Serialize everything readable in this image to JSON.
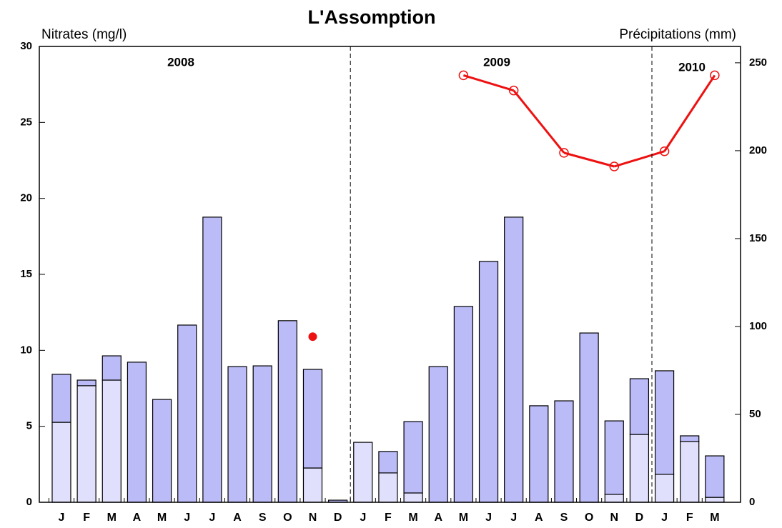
{
  "chart_data": {
    "type": "bar",
    "title": "L'Assomption",
    "ylabel": "Nitrates (mg/l)",
    "y2label": "Précipitations (mm)",
    "annotations": [
      "2008",
      "2009",
      "2010"
    ],
    "categories": [
      "J",
      "F",
      "M",
      "A",
      "M",
      "J",
      "J",
      "A",
      "S",
      "O",
      "N",
      "D",
      "J",
      "F",
      "M",
      "A",
      "M",
      "J",
      "J",
      "A",
      "S",
      "O",
      "N",
      "D",
      "J",
      "F",
      "M"
    ],
    "ylim": [
      0,
      30
    ],
    "yticks": [
      0,
      5,
      10,
      15,
      20,
      25,
      30
    ],
    "y2lim": [
      0,
      259.3
    ],
    "y2ticks": [
      0,
      50,
      100,
      150,
      200,
      250
    ],
    "series": [
      {
        "color": "#e0e0fc",
        "axis": "y2",
        "values": [
          45.5,
          66.3,
          69.5,
          0,
          0,
          0,
          0,
          0,
          0,
          0,
          19.5,
          0,
          34.1,
          16.7,
          5.3,
          0,
          0,
          0,
          0,
          0,
          0,
          0,
          4.5,
          38.6,
          15.9,
          34.6,
          2.8
        ]
      },
      {
        "color": "#bbbbf8",
        "axis": "y2",
        "values": [
          27.3,
          3.2,
          13.8,
          79.7,
          58.5,
          100.8,
          162.2,
          77.2,
          77.6,
          103.3,
          56.1,
          1.2,
          0,
          12.2,
          40.6,
          77.2,
          111.4,
          137,
          162.2,
          54.9,
          57.7,
          96.3,
          41.8,
          31.7,
          58.9,
          3.2,
          23.6
        ]
      },
      {
        "type": "line",
        "color": "#ee1111",
        "values": [
          null,
          null,
          null,
          null,
          null,
          null,
          null,
          null,
          null,
          null,
          null,
          null,
          null,
          null,
          null,
          null,
          28.1,
          null,
          27.1,
          null,
          23.0,
          null,
          22.1,
          null,
          23.1,
          null,
          28.1
        ]
      },
      {
        "type": "scatter",
        "color": "#ee1111",
        "values": [
          null,
          null,
          null,
          null,
          null,
          null,
          null,
          null,
          null,
          null,
          10.9,
          null,
          null,
          null,
          null,
          null,
          null,
          null,
          null,
          null,
          null,
          null,
          null,
          null,
          null,
          null,
          null
        ]
      }
    ]
  }
}
